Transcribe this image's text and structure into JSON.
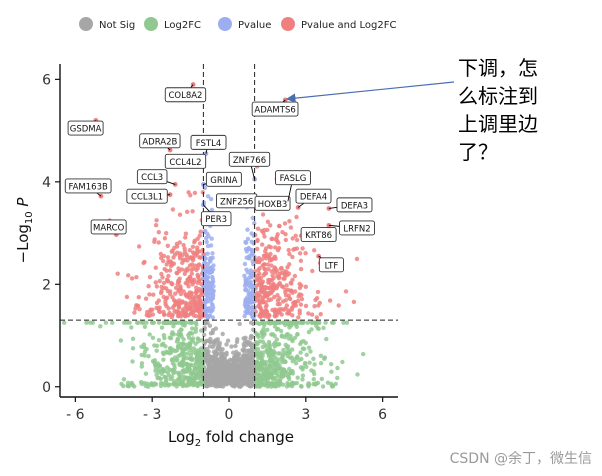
{
  "chart_data": {
    "type": "scatter",
    "xlabel_main": "Log",
    "xlabel_sub": "2",
    "xlabel_rest": " fold change",
    "ylabel_main": "−Log",
    "ylabel_sub": "10",
    "ylabel_rest": "P",
    "xlim": [
      -6.6,
      6.6
    ],
    "ylim": [
      -0.2,
      6.3
    ],
    "xticks": [
      -6,
      -3,
      0,
      3,
      6
    ],
    "xtick_labels": [
      "- 6",
      "- 3",
      "0",
      "3",
      "6"
    ],
    "yticks": [
      0,
      2,
      4,
      6
    ],
    "ytick_labels": [
      "0",
      "2",
      "4",
      "6"
    ],
    "thresholds": {
      "log2fc": [
        -1,
        1
      ],
      "neglog10p": 1.3
    },
    "legend": {
      "placement": "top",
      "entries": [
        {
          "label": "Not Sig",
          "color": "#a6a6a6"
        },
        {
          "label": "Log2FC",
          "color": "#8fc98f"
        },
        {
          "label": "Pvalue",
          "color": "#9daef0"
        },
        {
          "label": "Pvalue and Log2FC",
          "color": "#f08080"
        }
      ]
    },
    "labeled_genes": [
      {
        "gene": "COL8A2",
        "x": -1.4,
        "y": 5.9,
        "lx": -1.7,
        "ly": 5.7
      },
      {
        "gene": "GSDMA",
        "x": -5.2,
        "y": 5.2,
        "lx": -5.6,
        "ly": 5.05
      },
      {
        "gene": "ADRA2B",
        "x": -2.3,
        "y": 4.62,
        "lx": -2.7,
        "ly": 4.8
      },
      {
        "gene": "FSTL4",
        "x": -0.9,
        "y": 4.55,
        "lx": -0.8,
        "ly": 4.77
      },
      {
        "gene": "CCL4L2",
        "x": -1.6,
        "y": 4.32,
        "lx": -1.7,
        "ly": 4.4
      },
      {
        "gene": "CCL3",
        "x": -2.1,
        "y": 3.95,
        "lx": -3.0,
        "ly": 4.1
      },
      {
        "gene": "CCL3L1",
        "x": -2.3,
        "y": 3.75,
        "lx": -3.2,
        "ly": 3.72
      },
      {
        "gene": "FAM163B",
        "x": -5.0,
        "y": 3.72,
        "lx": -5.5,
        "ly": 3.92
      },
      {
        "gene": "MARCO",
        "x": -4.4,
        "y": 2.97,
        "lx": -4.7,
        "ly": 3.12
      },
      {
        "gene": "GRINA",
        "x": -1.0,
        "y": 3.95,
        "lx": -0.2,
        "ly": 4.05
      },
      {
        "gene": "PER3",
        "x": -1.0,
        "y": 3.55,
        "lx": -0.5,
        "ly": 3.28
      },
      {
        "gene": "ZNF766",
        "x": 1.0,
        "y": 4.05,
        "lx": 0.8,
        "ly": 4.44
      },
      {
        "gene": "ZNF256",
        "x": 0.9,
        "y": 3.7,
        "lx": 0.3,
        "ly": 3.63
      },
      {
        "gene": "HOXB3",
        "x": 1.5,
        "y": 3.62,
        "lx": 1.7,
        "ly": 3.58
      },
      {
        "gene": "FASLG",
        "x": 2.3,
        "y": 3.62,
        "lx": 2.5,
        "ly": 4.08
      },
      {
        "gene": "DEFA4",
        "x": 2.7,
        "y": 3.5,
        "lx": 3.3,
        "ly": 3.72
      },
      {
        "gene": "DEFA3",
        "x": 3.9,
        "y": 3.48,
        "lx": 4.9,
        "ly": 3.55
      },
      {
        "gene": "LRFN2",
        "x": 3.9,
        "y": 3.15,
        "lx": 5.0,
        "ly": 3.1
      },
      {
        "gene": "KRT86",
        "x": 2.9,
        "y": 3.05,
        "lx": 3.5,
        "ly": 2.97
      },
      {
        "gene": "ADAMTS6",
        "x": 2.2,
        "y": 5.6,
        "lx": 1.8,
        "ly": 5.42
      },
      {
        "gene": "LTF",
        "x": 3.5,
        "y": 2.55,
        "lx": 4.0,
        "ly": 2.38
      }
    ]
  },
  "annotation": {
    "text": "下调，怎\n么标注到\n上调里边\n了？"
  },
  "watermark": "CSDN @余丁，微生信"
}
